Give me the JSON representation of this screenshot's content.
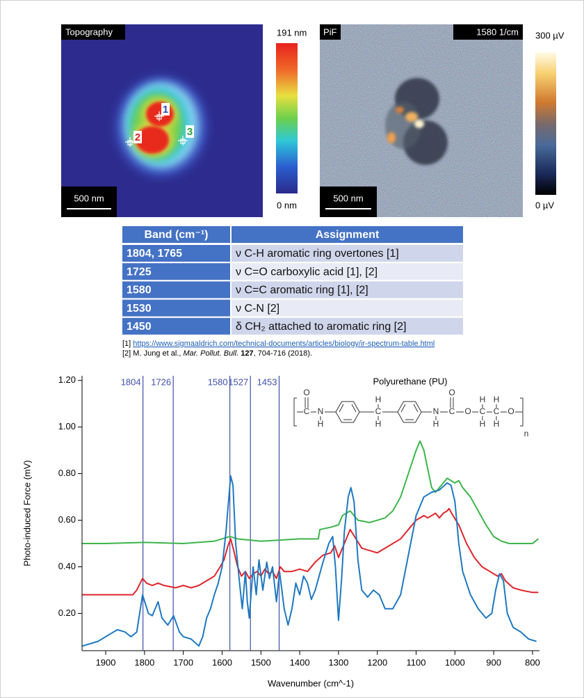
{
  "images": [
    {
      "label": "Topography",
      "scalebar": "500 nm",
      "colorbar_max": "191 nm",
      "colorbar_min": "0 nm",
      "markers": [
        "1",
        "2",
        "3"
      ]
    },
    {
      "label": "PiF",
      "tag": "1580 1/cm",
      "scalebar": "500 nm",
      "colorbar_max": "300 µV",
      "colorbar_min": "0 µV"
    }
  ],
  "table": {
    "header": [
      "Band (cm⁻¹)",
      "Assignment"
    ],
    "rows": [
      [
        "1804, 1765",
        "ν C-H aromatic ring overtones [1]"
      ],
      [
        "1725",
        "ν C=O carboxylic acid [1], [2]"
      ],
      [
        "1580",
        "ν C=C aromatic ring [1], [2]"
      ],
      [
        "1530",
        "ν C-N [2]"
      ],
      [
        "1450",
        "δ CH₂ attached to aromatic ring [2]"
      ]
    ]
  },
  "references": [
    {
      "number": "[1] ",
      "url": "https://www.sigmaaldrich.com/technical-documents/articles/biology/ir-spectrum-table.html"
    },
    {
      "number": "[2] ",
      "authors": "M. Jung et al., ",
      "journal": "Mar. Pollut. Bull.",
      "volume": " 127",
      "rest": ", 704-716 (2018)."
    }
  ],
  "structure": {
    "title": "Polyurethane (PU)",
    "atoms": [
      "O",
      "C",
      "N",
      "H",
      "C",
      "H",
      "H",
      "N",
      "H",
      "C",
      "O",
      "O",
      "C",
      "H",
      "H",
      "C",
      "H",
      "H",
      "O",
      "n"
    ]
  },
  "chart_data": {
    "type": "line",
    "xlabel": "Wavenumber (cm^-1)",
    "ylabel": "Photo-induced Force (mV)",
    "xlim": [
      1961,
      782
    ],
    "ylim": [
      0.04,
      1.22
    ],
    "xticks": [
      1900,
      1800,
      1700,
      1600,
      1500,
      1400,
      1300,
      1200,
      1100,
      1000,
      900,
      800
    ],
    "yticks": [
      {
        "value": 0.2,
        "label": "0.20"
      },
      {
        "value": 0.4,
        "label": "0.40"
      },
      {
        "value": 0.6,
        "label": "0.60"
      },
      {
        "value": 0.8,
        "label": "0.80"
      },
      {
        "value": 1.0,
        "label": "1.00"
      },
      {
        "value": 1.2,
        "label": "1.20"
      }
    ],
    "vlines": [
      1804,
      1726,
      1580,
      1527,
      1453
    ],
    "vline_color": "#3f4fa8",
    "series": [
      {
        "color": "#3cb54a",
        "x": [
          1960,
          1900,
          1800,
          1700,
          1620,
          1580,
          1560,
          1500,
          1400,
          1352,
          1348,
          1320,
          1300,
          1290,
          1270,
          1250,
          1220,
          1200,
          1180,
          1160,
          1140,
          1120,
          1100,
          1090,
          1080,
          1070,
          1060,
          1050,
          1040,
          1020,
          1000,
          990,
          980,
          960,
          940,
          920,
          900,
          880,
          860,
          800,
          785
        ],
        "values": [
          0.5,
          0.5,
          0.505,
          0.5,
          0.51,
          0.53,
          0.52,
          0.51,
          0.52,
          0.52,
          0.56,
          0.57,
          0.58,
          0.62,
          0.64,
          0.6,
          0.59,
          0.6,
          0.61,
          0.64,
          0.7,
          0.8,
          0.9,
          0.94,
          0.9,
          0.82,
          0.74,
          0.72,
          0.74,
          0.78,
          0.76,
          0.77,
          0.74,
          0.7,
          0.64,
          0.58,
          0.53,
          0.51,
          0.5,
          0.5,
          0.52
        ]
      },
      {
        "color": "#e0242b",
        "x": [
          1960,
          1830,
          1820,
          1805,
          1795,
          1780,
          1765,
          1750,
          1720,
          1700,
          1680,
          1660,
          1640,
          1620,
          1605,
          1595,
          1585,
          1578,
          1570,
          1560,
          1550,
          1540,
          1530,
          1520,
          1510,
          1500,
          1490,
          1480,
          1470,
          1460,
          1450,
          1440,
          1420,
          1400,
          1380,
          1360,
          1340,
          1320,
          1310,
          1300,
          1295,
          1285,
          1270,
          1255,
          1240,
          1220,
          1200,
          1180,
          1160,
          1140,
          1120,
          1100,
          1080,
          1070,
          1050,
          1040,
          1030,
          1020,
          1015,
          1005,
          990,
          970,
          950,
          930,
          910,
          890,
          880,
          870,
          850,
          830,
          800,
          785
        ],
        "values": [
          0.28,
          0.28,
          0.3,
          0.35,
          0.33,
          0.32,
          0.33,
          0.32,
          0.31,
          0.32,
          0.31,
          0.32,
          0.34,
          0.36,
          0.4,
          0.43,
          0.49,
          0.52,
          0.47,
          0.4,
          0.36,
          0.38,
          0.35,
          0.37,
          0.38,
          0.36,
          0.39,
          0.37,
          0.38,
          0.35,
          0.4,
          0.38,
          0.38,
          0.39,
          0.38,
          0.42,
          0.45,
          0.46,
          0.49,
          0.44,
          0.46,
          0.5,
          0.56,
          0.52,
          0.48,
          0.47,
          0.46,
          0.48,
          0.5,
          0.52,
          0.56,
          0.6,
          0.62,
          0.61,
          0.63,
          0.61,
          0.63,
          0.64,
          0.65,
          0.62,
          0.58,
          0.5,
          0.44,
          0.4,
          0.38,
          0.36,
          0.37,
          0.34,
          0.31,
          0.3,
          0.29,
          0.29
        ]
      },
      {
        "color": "#1f78c1",
        "x": [
          1960,
          1920,
          1890,
          1870,
          1850,
          1835,
          1820,
          1805,
          1790,
          1780,
          1765,
          1755,
          1740,
          1725,
          1710,
          1700,
          1680,
          1660,
          1650,
          1640,
          1630,
          1620,
          1610,
          1600,
          1590,
          1578,
          1572,
          1565,
          1555,
          1548,
          1540,
          1535,
          1530,
          1520,
          1512,
          1505,
          1495,
          1485,
          1478,
          1470,
          1460,
          1452,
          1440,
          1430,
          1420,
          1410,
          1400,
          1390,
          1380,
          1370,
          1360,
          1340,
          1325,
          1315,
          1308,
          1300,
          1292,
          1285,
          1275,
          1268,
          1260,
          1250,
          1240,
          1225,
          1210,
          1195,
          1180,
          1160,
          1140,
          1120,
          1100,
          1080,
          1060,
          1040,
          1020,
          1010,
          1000,
          990,
          980,
          960,
          940,
          920,
          905,
          895,
          885,
          875,
          865,
          850,
          830,
          810,
          790
        ],
        "values": [
          0.06,
          0.08,
          0.11,
          0.13,
          0.12,
          0.1,
          0.12,
          0.28,
          0.2,
          0.19,
          0.25,
          0.18,
          0.15,
          0.19,
          0.12,
          0.1,
          0.09,
          0.06,
          0.1,
          0.18,
          0.22,
          0.28,
          0.33,
          0.4,
          0.55,
          0.79,
          0.75,
          0.5,
          0.33,
          0.22,
          0.38,
          0.25,
          0.18,
          0.4,
          0.28,
          0.43,
          0.3,
          0.42,
          0.35,
          0.4,
          0.25,
          0.38,
          0.22,
          0.15,
          0.22,
          0.33,
          0.28,
          0.36,
          0.33,
          0.26,
          0.3,
          0.42,
          0.5,
          0.53,
          0.4,
          0.17,
          0.35,
          0.55,
          0.7,
          0.74,
          0.68,
          0.43,
          0.3,
          0.27,
          0.3,
          0.28,
          0.22,
          0.22,
          0.28,
          0.45,
          0.62,
          0.7,
          0.72,
          0.73,
          0.76,
          0.75,
          0.68,
          0.5,
          0.38,
          0.28,
          0.22,
          0.18,
          0.2,
          0.3,
          0.37,
          0.34,
          0.2,
          0.14,
          0.12,
          0.09,
          0.08
        ]
      }
    ]
  }
}
